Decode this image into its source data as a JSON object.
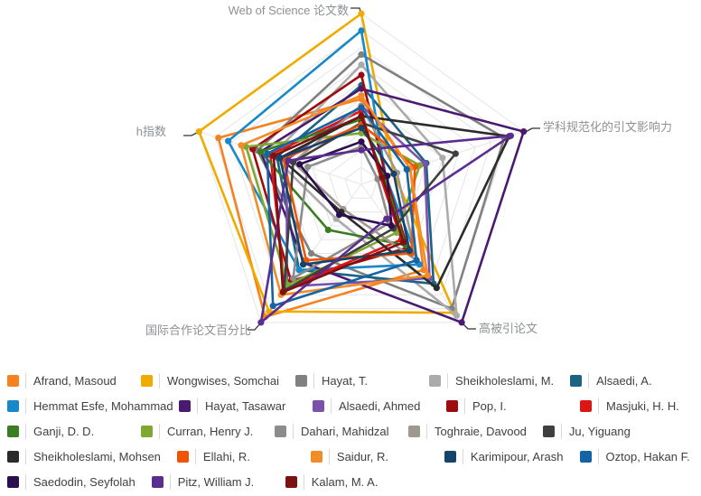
{
  "page": {
    "background": "#ffffff",
    "description": "Radar chart comparing 23 researchers on 5 bibliometric indicators, with color legend below"
  },
  "chart_data": {
    "type": "radar",
    "shape": "pentagon",
    "grid": {
      "ring_levels": 10,
      "grid_color": "#e5e5e5",
      "show_spokes": true
    },
    "scale_note": "values are normalized 0-1 as fraction of axis maximum (estimated from pixel positions)",
    "value_range": [
      0,
      1
    ],
    "axes": [
      {
        "id": "wos_docs",
        "label": "Web of Science 论文数",
        "position": "top"
      },
      {
        "id": "cnci",
        "label": "学科规范化的引文影响力",
        "position": "right"
      },
      {
        "id": "highly_cited",
        "label": "高被引论文",
        "position": "bottom-right"
      },
      {
        "id": "intl_collab",
        "label": "国际合作论文百分比",
        "position": "bottom-left"
      },
      {
        "id": "h_index",
        "label": "h指数",
        "position": "left"
      }
    ],
    "series": [
      {
        "name": "Afrand, Masoud",
        "color": "#F5821F",
        "values": [
          0.5,
          0.3,
          0.62,
          0.96,
          0.88
        ]
      },
      {
        "name": "Wongwises, Somchai",
        "color": "#F0AB00",
        "values": [
          1.0,
          0.2,
          0.93,
          0.92,
          1.0
        ]
      },
      {
        "name": "Hayat, T.",
        "color": "#808080",
        "values": [
          0.76,
          0.88,
          0.9,
          0.5,
          0.64
        ]
      },
      {
        "name": "Sheikholeslami, M.",
        "color": "#ABABAB",
        "values": [
          0.7,
          0.5,
          0.95,
          0.25,
          0.55
        ]
      },
      {
        "name": "Alsaedi, A.",
        "color": "#1A6384",
        "values": [
          0.58,
          0.4,
          0.72,
          0.62,
          0.52
        ]
      },
      {
        "name": "Hemmat Esfe, Mohammad",
        "color": "#1789C8",
        "values": [
          0.9,
          0.15,
          0.58,
          0.62,
          0.82
        ]
      },
      {
        "name": "Hayat, Tasawar",
        "color": "#4A1A70",
        "values": [
          0.56,
          1.0,
          1.0,
          0.57,
          0.62
        ]
      },
      {
        "name": "Alsaedi, Ahmed",
        "color": "#7B52AB",
        "values": [
          0.46,
          0.39,
          0.68,
          0.74,
          0.46
        ]
      },
      {
        "name": "Pop, I.",
        "color": "#9E0B0F",
        "values": [
          0.64,
          0.15,
          0.46,
          0.7,
          0.67
        ]
      },
      {
        "name": "Masjuki, H. H.",
        "color": "#DD1515",
        "values": [
          0.43,
          0.12,
          0.4,
          0.76,
          0.56
        ]
      },
      {
        "name": "Ganji, D. D.",
        "color": "#3B7D23",
        "values": [
          0.38,
          0.14,
          0.44,
          0.33,
          0.62
        ]
      },
      {
        "name": "Curran, Henry J.",
        "color": "#7FA832",
        "values": [
          0.3,
          0.36,
          0.35,
          0.73,
          0.71
        ]
      },
      {
        "name": "Dahari, Mahidzal",
        "color": "#8C8C8C",
        "values": [
          0.22,
          0.1,
          0.28,
          0.68,
          0.33
        ]
      },
      {
        "name": "Toghraie, Davood",
        "color": "#9E9890",
        "values": [
          0.46,
          0.22,
          0.55,
          0.18,
          0.42
        ]
      },
      {
        "name": "Ju, Yiguang",
        "color": "#3F3F3F",
        "values": [
          0.36,
          0.58,
          0.32,
          0.77,
          0.42
        ]
      },
      {
        "name": "Sheikholeslami, Mohsen",
        "color": "#2B2B2B",
        "values": [
          0.4,
          0.91,
          0.75,
          0.2,
          0.5
        ]
      },
      {
        "name": "Ellahi, R.",
        "color": "#ED5505",
        "values": [
          0.35,
          0.33,
          0.5,
          0.55,
          0.48
        ]
      },
      {
        "name": "Saidur, R.",
        "color": "#F28C28",
        "values": [
          0.52,
          0.3,
          0.66,
          0.8,
          0.74
        ]
      },
      {
        "name": "Karimipour, Arash",
        "color": "#14436B",
        "values": [
          0.33,
          0.2,
          0.48,
          0.58,
          0.5
        ]
      },
      {
        "name": "Oztop, Hakan F.",
        "color": "#1464A5",
        "values": [
          0.45,
          0.28,
          0.55,
          0.88,
          0.58
        ]
      },
      {
        "name": "Saedodin, Seyfolah",
        "color": "#2A0E4F",
        "values": [
          0.25,
          0.16,
          0.3,
          0.22,
          0.38
        ]
      },
      {
        "name": "Pitz, William J.",
        "color": "#5B2D90",
        "values": [
          0.2,
          0.92,
          0.25,
          1.0,
          0.45
        ]
      },
      {
        "name": "Kalam, M. A.",
        "color": "#7B1111",
        "values": [
          0.4,
          0.13,
          0.42,
          0.78,
          0.54
        ]
      }
    ],
    "legend_position": "bottom"
  },
  "axis_labels": {
    "top": "Web of Science 论文数",
    "right": "学科规范化的引文影响力",
    "bottom_right": "高被引论文",
    "bottom_left": "国际合作论文百分比",
    "left": "h指数"
  },
  "legend": {
    "rows": [
      [
        0,
        1,
        2,
        3,
        4
      ],
      [
        5,
        6,
        7,
        8,
        9
      ],
      [
        10,
        11,
        12,
        13,
        14
      ],
      [
        15,
        16,
        17,
        18,
        19
      ],
      [
        20,
        21,
        22
      ]
    ]
  },
  "style": {
    "axis_label_color": "#8c9196",
    "connector_color": "#333333",
    "legend_text_color": "#404040",
    "grid_color": "#e5e5e5"
  }
}
